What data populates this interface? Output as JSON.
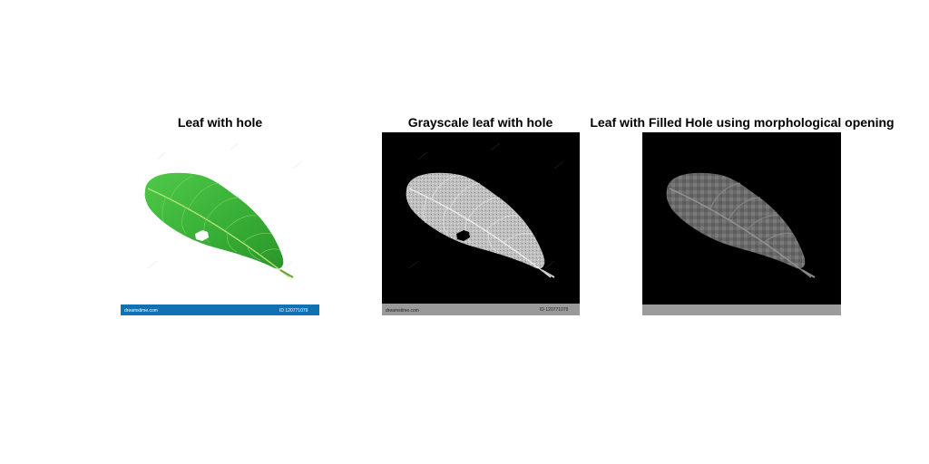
{
  "figure": {
    "background": "#ffffff",
    "panels": [
      {
        "title": "Leaf with hole",
        "image_kind": "color-photo",
        "footer_strip_color": "#1172b3",
        "footer_left_text": "dreamstime.com",
        "footer_right_text": "ID 120771079"
      },
      {
        "title": "Grayscale leaf with hole",
        "image_kind": "grayscale-photo",
        "footer_strip_color": "#9a9a9a",
        "footer_left_text": "dreamstime.com",
        "footer_right_text": "ID 120771079"
      },
      {
        "title": "Leaf with Filled Hole using morphological opening",
        "image_kind": "opened-grayscale",
        "footer_strip_color": "#9c9c9c"
      }
    ]
  },
  "colors": {
    "leaf_green": "#3fb83a",
    "leaf_dark_green": "#2a8f2a",
    "gray_leaf": "#b8b8b8",
    "opened_leaf": "#6e6e6e",
    "black_bg": "#000000"
  }
}
